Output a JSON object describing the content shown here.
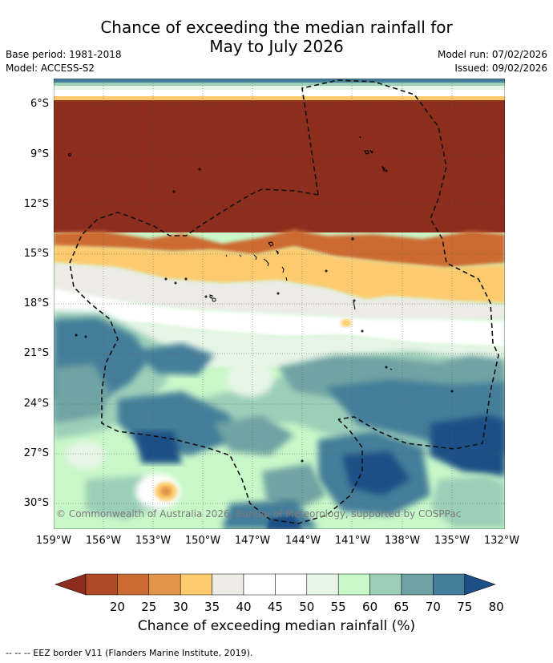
{
  "header": {
    "title_line1": "Chance of exceeding the median rainfall for",
    "title_line2": "May to July 2026",
    "base_period": "Base period: 1981-2018",
    "model": "Model: ACCESS-S2",
    "model_run": "Model run: 07/02/2026",
    "issued": "Issued: 09/02/2026"
  },
  "map": {
    "lat_labels": [
      "6°S",
      "9°S",
      "12°S",
      "15°S",
      "18°S",
      "21°S",
      "24°S",
      "27°S",
      "30°S"
    ],
    "lon_labels": [
      "159°W",
      "156°W",
      "153°W",
      "150°W",
      "147°W",
      "144°W",
      "141°W",
      "138°W",
      "135°W",
      "132°W"
    ],
    "copyright": "© Commonwealth of Australia 2026, Bureau of Meteorology, supported by COSPPac"
  },
  "colorbar": {
    "labels": [
      "20",
      "25",
      "30",
      "35",
      "40",
      "45",
      "50",
      "55",
      "60",
      "65",
      "70",
      "75",
      "80"
    ],
    "colors": [
      "#8c2d1e",
      "#b04a28",
      "#cc6a33",
      "#e0954a",
      "#fdcb6e",
      "#ecebe6",
      "#ffffff",
      "#ffffff",
      "#e6f5e6",
      "#c8f7c8",
      "#9ccfb8",
      "#6fa3a3",
      "#447e9a",
      "#1b4f86"
    ],
    "title": "Chance of exceeding median rainfall (%)"
  },
  "footer": "--  --  -- EEZ border V11 (Flanders Marine Institute, 2019)."
}
